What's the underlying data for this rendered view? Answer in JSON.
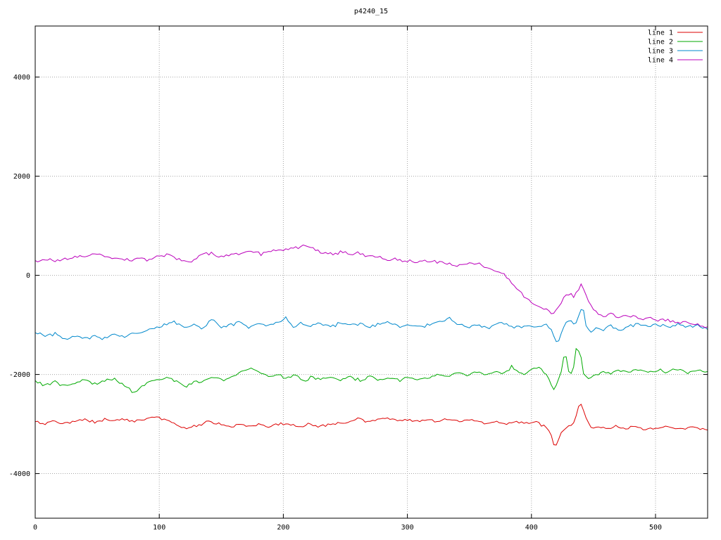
{
  "chart_data": {
    "type": "line",
    "title": "p4240_15",
    "xlabel": "",
    "ylabel": "",
    "xlim": [
      0,
      542
    ],
    "ylim": [
      -4900,
      5030
    ],
    "x_ticks": [
      0,
      100,
      200,
      300,
      400,
      500
    ],
    "y_ticks": [
      -4000,
      -2000,
      0,
      2000,
      4000
    ],
    "grid": true,
    "legend_position": "top-right",
    "series": [
      {
        "name": "line 1",
        "color": "#dd0000",
        "noise": 35,
        "keypoints": [
          [
            0,
            -2950
          ],
          [
            8,
            -3000
          ],
          [
            16,
            -2950
          ],
          [
            24,
            -3000
          ],
          [
            32,
            -2950
          ],
          [
            40,
            -2910
          ],
          [
            48,
            -2960
          ],
          [
            56,
            -2900
          ],
          [
            64,
            -2950
          ],
          [
            72,
            -2900
          ],
          [
            80,
            -2950
          ],
          [
            88,
            -2890
          ],
          [
            96,
            -2850
          ],
          [
            104,
            -2900
          ],
          [
            110,
            -2950
          ],
          [
            116,
            -3040
          ],
          [
            122,
            -3100
          ],
          [
            128,
            -3050
          ],
          [
            134,
            -3000
          ],
          [
            140,
            -2950
          ],
          [
            148,
            -3000
          ],
          [
            156,
            -3050
          ],
          [
            164,
            -3000
          ],
          [
            172,
            -3050
          ],
          [
            180,
            -3000
          ],
          [
            188,
            -3050
          ],
          [
            196,
            -3000
          ],
          [
            204,
            -3010
          ],
          [
            212,
            -3050
          ],
          [
            220,
            -3000
          ],
          [
            228,
            -3050
          ],
          [
            236,
            -3010
          ],
          [
            244,
            -2990
          ],
          [
            252,
            -2950
          ],
          [
            260,
            -2900
          ],
          [
            268,
            -2950
          ],
          [
            276,
            -2910
          ],
          [
            284,
            -2860
          ],
          [
            292,
            -2950
          ],
          [
            300,
            -2900
          ],
          [
            308,
            -2950
          ],
          [
            316,
            -2900
          ],
          [
            324,
            -2950
          ],
          [
            332,
            -2900
          ],
          [
            340,
            -2950
          ],
          [
            348,
            -2910
          ],
          [
            356,
            -2950
          ],
          [
            364,
            -2990
          ],
          [
            372,
            -2950
          ],
          [
            380,
            -3000
          ],
          [
            388,
            -2950
          ],
          [
            396,
            -3000
          ],
          [
            404,
            -2950
          ],
          [
            410,
            -3040
          ],
          [
            415,
            -3150
          ],
          [
            419,
            -3480
          ],
          [
            423,
            -3200
          ],
          [
            427,
            -3100
          ],
          [
            431,
            -3040
          ],
          [
            435,
            -2950
          ],
          [
            438,
            -2630
          ],
          [
            440,
            -2600
          ],
          [
            443,
            -2800
          ],
          [
            446,
            -3000
          ],
          [
            450,
            -3090
          ],
          [
            456,
            -3050
          ],
          [
            462,
            -3100
          ],
          [
            468,
            -3050
          ],
          [
            476,
            -3100
          ],
          [
            484,
            -3050
          ],
          [
            492,
            -3100
          ],
          [
            500,
            -3090
          ],
          [
            508,
            -3050
          ],
          [
            516,
            -3100
          ],
          [
            524,
            -3090
          ],
          [
            532,
            -3060
          ],
          [
            542,
            -3140
          ]
        ]
      },
      {
        "name": "line 2",
        "color": "#00aa00",
        "noise": 40,
        "keypoints": [
          [
            0,
            -2150
          ],
          [
            8,
            -2210
          ],
          [
            16,
            -2150
          ],
          [
            24,
            -2240
          ],
          [
            32,
            -2160
          ],
          [
            40,
            -2110
          ],
          [
            48,
            -2190
          ],
          [
            56,
            -2140
          ],
          [
            64,
            -2100
          ],
          [
            70,
            -2190
          ],
          [
            76,
            -2300
          ],
          [
            80,
            -2350
          ],
          [
            86,
            -2240
          ],
          [
            92,
            -2150
          ],
          [
            100,
            -2100
          ],
          [
            108,
            -2060
          ],
          [
            115,
            -2150
          ],
          [
            122,
            -2240
          ],
          [
            130,
            -2150
          ],
          [
            138,
            -2100
          ],
          [
            145,
            -2060
          ],
          [
            152,
            -2110
          ],
          [
            160,
            -2010
          ],
          [
            168,
            -1950
          ],
          [
            174,
            -1870
          ],
          [
            180,
            -1950
          ],
          [
            188,
            -2050
          ],
          [
            196,
            -2000
          ],
          [
            202,
            -2100
          ],
          [
            210,
            -2000
          ],
          [
            216,
            -2150
          ],
          [
            222,
            -2060
          ],
          [
            230,
            -2110
          ],
          [
            238,
            -2050
          ],
          [
            246,
            -2100
          ],
          [
            254,
            -2060
          ],
          [
            262,
            -2110
          ],
          [
            270,
            -2050
          ],
          [
            278,
            -2100
          ],
          [
            286,
            -2060
          ],
          [
            294,
            -2110
          ],
          [
            302,
            -2050
          ],
          [
            310,
            -2100
          ],
          [
            318,
            -2050
          ],
          [
            326,
            -2000
          ],
          [
            334,
            -2050
          ],
          [
            340,
            -1950
          ],
          [
            348,
            -2010
          ],
          [
            356,
            -1950
          ],
          [
            364,
            -2000
          ],
          [
            372,
            -1950
          ],
          [
            378,
            -1990
          ],
          [
            384,
            -1830
          ],
          [
            390,
            -1960
          ],
          [
            395,
            -2000
          ],
          [
            400,
            -1900
          ],
          [
            405,
            -1860
          ],
          [
            410,
            -1950
          ],
          [
            414,
            -2060
          ],
          [
            418,
            -2330
          ],
          [
            421,
            -2150
          ],
          [
            424,
            -1950
          ],
          [
            427,
            -1500
          ],
          [
            430,
            -1950
          ],
          [
            433,
            -2010
          ],
          [
            436,
            -1450
          ],
          [
            439,
            -1520
          ],
          [
            442,
            -2000
          ],
          [
            446,
            -2060
          ],
          [
            452,
            -2000
          ],
          [
            458,
            -1950
          ],
          [
            464,
            -2000
          ],
          [
            470,
            -1910
          ],
          [
            478,
            -1960
          ],
          [
            486,
            -1900
          ],
          [
            494,
            -1950
          ],
          [
            502,
            -1900
          ],
          [
            510,
            -1950
          ],
          [
            518,
            -1900
          ],
          [
            526,
            -1950
          ],
          [
            534,
            -1910
          ],
          [
            542,
            -1950
          ]
        ]
      },
      {
        "name": "line 3",
        "color": "#0088cc",
        "noise": 40,
        "keypoints": [
          [
            0,
            -1150
          ],
          [
            8,
            -1230
          ],
          [
            16,
            -1180
          ],
          [
            24,
            -1280
          ],
          [
            32,
            -1230
          ],
          [
            40,
            -1280
          ],
          [
            48,
            -1230
          ],
          [
            56,
            -1270
          ],
          [
            64,
            -1200
          ],
          [
            72,
            -1240
          ],
          [
            80,
            -1160
          ],
          [
            88,
            -1120
          ],
          [
            96,
            -1080
          ],
          [
            104,
            -1000
          ],
          [
            112,
            -950
          ],
          [
            120,
            -1040
          ],
          [
            128,
            -990
          ],
          [
            135,
            -1080
          ],
          [
            142,
            -900
          ],
          [
            150,
            -1040
          ],
          [
            158,
            -990
          ],
          [
            165,
            -950
          ],
          [
            172,
            -1040
          ],
          [
            180,
            -950
          ],
          [
            188,
            -1000
          ],
          [
            196,
            -950
          ],
          [
            202,
            -870
          ],
          [
            208,
            -1040
          ],
          [
            215,
            -950
          ],
          [
            222,
            -1000
          ],
          [
            230,
            -960
          ],
          [
            238,
            -1040
          ],
          [
            246,
            -960
          ],
          [
            254,
            -1010
          ],
          [
            262,
            -960
          ],
          [
            270,
            -1040
          ],
          [
            278,
            -990
          ],
          [
            286,
            -950
          ],
          [
            294,
            -1040
          ],
          [
            302,
            -1000
          ],
          [
            310,
            -1040
          ],
          [
            318,
            -990
          ],
          [
            326,
            -950
          ],
          [
            334,
            -880
          ],
          [
            342,
            -1000
          ],
          [
            350,
            -1050
          ],
          [
            358,
            -1000
          ],
          [
            366,
            -1050
          ],
          [
            374,
            -960
          ],
          [
            382,
            -1010
          ],
          [
            390,
            -1050
          ],
          [
            398,
            -1000
          ],
          [
            406,
            -1040
          ],
          [
            412,
            -1000
          ],
          [
            416,
            -1120
          ],
          [
            419,
            -1260
          ],
          [
            421,
            -1400
          ],
          [
            424,
            -1150
          ],
          [
            428,
            -950
          ],
          [
            432,
            -900
          ],
          [
            435,
            -1000
          ],
          [
            438,
            -820
          ],
          [
            441,
            -580
          ],
          [
            444,
            -1000
          ],
          [
            448,
            -1150
          ],
          [
            453,
            -1040
          ],
          [
            458,
            -1100
          ],
          [
            464,
            -1000
          ],
          [
            470,
            -1100
          ],
          [
            478,
            -1040
          ],
          [
            486,
            -990
          ],
          [
            494,
            -1040
          ],
          [
            502,
            -990
          ],
          [
            510,
            -1040
          ],
          [
            518,
            -990
          ],
          [
            526,
            -1040
          ],
          [
            534,
            -1000
          ],
          [
            542,
            -1090
          ]
        ]
      },
      {
        "name": "line 4",
        "color": "#bb00bb",
        "noise": 45,
        "keypoints": [
          [
            0,
            300
          ],
          [
            10,
            320
          ],
          [
            20,
            300
          ],
          [
            30,
            350
          ],
          [
            40,
            400
          ],
          [
            48,
            430
          ],
          [
            55,
            380
          ],
          [
            62,
            350
          ],
          [
            70,
            330
          ],
          [
            78,
            300
          ],
          [
            85,
            330
          ],
          [
            92,
            300
          ],
          [
            100,
            390
          ],
          [
            108,
            420
          ],
          [
            115,
            350
          ],
          [
            122,
            260
          ],
          [
            130,
            340
          ],
          [
            138,
            470
          ],
          [
            145,
            400
          ],
          [
            152,
            380
          ],
          [
            160,
            450
          ],
          [
            168,
            420
          ],
          [
            175,
            490
          ],
          [
            182,
            440
          ],
          [
            190,
            500
          ],
          [
            198,
            520
          ],
          [
            205,
            540
          ],
          [
            212,
            560
          ],
          [
            216,
            620
          ],
          [
            220,
            570
          ],
          [
            226,
            500
          ],
          [
            232,
            460
          ],
          [
            240,
            440
          ],
          [
            248,
            470
          ],
          [
            255,
            420
          ],
          [
            262,
            440
          ],
          [
            270,
            390
          ],
          [
            278,
            360
          ],
          [
            285,
            330
          ],
          [
            292,
            310
          ],
          [
            300,
            290
          ],
          [
            308,
            270
          ],
          [
            315,
            300
          ],
          [
            322,
            280
          ],
          [
            330,
            240
          ],
          [
            338,
            210
          ],
          [
            345,
            200
          ],
          [
            352,
            260
          ],
          [
            358,
            220
          ],
          [
            365,
            130
          ],
          [
            372,
            100
          ],
          [
            378,
            0
          ],
          [
            383,
            -130
          ],
          [
            388,
            -260
          ],
          [
            393,
            -400
          ],
          [
            398,
            -520
          ],
          [
            403,
            -600
          ],
          [
            408,
            -660
          ],
          [
            413,
            -700
          ],
          [
            418,
            -760
          ],
          [
            422,
            -650
          ],
          [
            426,
            -450
          ],
          [
            430,
            -380
          ],
          [
            434,
            -420
          ],
          [
            437,
            -350
          ],
          [
            440,
            -150
          ],
          [
            443,
            -300
          ],
          [
            446,
            -550
          ],
          [
            450,
            -700
          ],
          [
            455,
            -780
          ],
          [
            460,
            -830
          ],
          [
            465,
            -780
          ],
          [
            470,
            -850
          ],
          [
            478,
            -800
          ],
          [
            486,
            -880
          ],
          [
            494,
            -850
          ],
          [
            502,
            -920
          ],
          [
            510,
            -900
          ],
          [
            518,
            -960
          ],
          [
            526,
            -920
          ],
          [
            534,
            -980
          ],
          [
            542,
            -1030
          ]
        ]
      }
    ]
  }
}
